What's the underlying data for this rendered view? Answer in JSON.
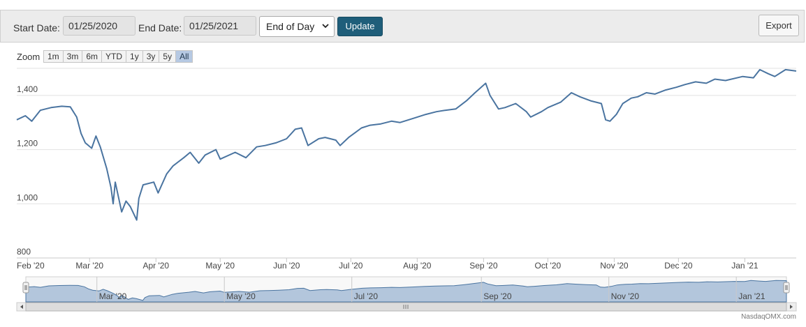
{
  "toolbar": {
    "start_label": "Start Date:",
    "start_value": "01/25/2020",
    "end_label": "End Date:",
    "end_value": "01/25/2021",
    "interval_value": "End of Day",
    "update_label": "Update",
    "export_label": "Export"
  },
  "zoom": {
    "label": "Zoom",
    "options": [
      "1m",
      "3m",
      "6m",
      "YTD",
      "1y",
      "3y",
      "5y",
      "All"
    ],
    "active": "All"
  },
  "credit": "NasdaqOMX.com",
  "colors": {
    "line": "#4a74a0",
    "navigator_fill": "#b3c6dc",
    "grid": "#e2e2e2",
    "active_zoom": "#b6c9e3",
    "update_button": "#1f5e7a"
  },
  "chart_data": {
    "type": "line",
    "title": "",
    "xlabel": "",
    "ylabel": "",
    "x_range": [
      "2020-01-27",
      "2021-01-25"
    ],
    "ylim": [
      800,
      1500
    ],
    "y_ticks": [
      800,
      1000,
      1200,
      1400
    ],
    "y_tick_labels": [
      "800",
      "1,000",
      "1,200",
      "1,400"
    ],
    "x_ticks": [
      {
        "date": "2020-02-01",
        "label": "Feb '20"
      },
      {
        "date": "2020-03-01",
        "label": "Mar '20"
      },
      {
        "date": "2020-04-01",
        "label": "Apr '20"
      },
      {
        "date": "2020-05-01",
        "label": "May '20"
      },
      {
        "date": "2020-06-01",
        "label": "Jun '20"
      },
      {
        "date": "2020-07-01",
        "label": "Jul '20"
      },
      {
        "date": "2020-08-01",
        "label": "Aug '20"
      },
      {
        "date": "2020-09-01",
        "label": "Sep '20"
      },
      {
        "date": "2020-10-01",
        "label": "Oct '20"
      },
      {
        "date": "2020-11-01",
        "label": "Nov '20"
      },
      {
        "date": "2020-12-01",
        "label": "Dec '20"
      },
      {
        "date": "2021-01-01",
        "label": "Jan '21"
      }
    ],
    "navigator_ticks": [
      {
        "date": "2020-03-01",
        "label": "Mar '20"
      },
      {
        "date": "2020-05-01",
        "label": "May '20"
      },
      {
        "date": "2020-07-01",
        "label": "Jul '20"
      },
      {
        "date": "2020-09-01",
        "label": "Sep '20"
      },
      {
        "date": "2020-11-01",
        "label": "Nov '20"
      },
      {
        "date": "2021-01-01",
        "label": "Jan '21"
      }
    ],
    "grid": true,
    "legend": "none",
    "series": [
      {
        "values": [
          [
            "2020-01-27",
            1310
          ],
          [
            "2020-01-31",
            1325
          ],
          [
            "2020-02-03",
            1305
          ],
          [
            "2020-02-07",
            1345
          ],
          [
            "2020-02-12",
            1355
          ],
          [
            "2020-02-17",
            1360
          ],
          [
            "2020-02-21",
            1358
          ],
          [
            "2020-02-24",
            1320
          ],
          [
            "2020-02-26",
            1260
          ],
          [
            "2020-02-28",
            1225
          ],
          [
            "2020-03-02",
            1205
          ],
          [
            "2020-03-04",
            1250
          ],
          [
            "2020-03-06",
            1210
          ],
          [
            "2020-03-09",
            1130
          ],
          [
            "2020-03-11",
            1060
          ],
          [
            "2020-03-12",
            1000
          ],
          [
            "2020-03-13",
            1080
          ],
          [
            "2020-03-16",
            970
          ],
          [
            "2020-03-18",
            1010
          ],
          [
            "2020-03-20",
            990
          ],
          [
            "2020-03-23",
            940
          ],
          [
            "2020-03-24",
            1020
          ],
          [
            "2020-03-26",
            1070
          ],
          [
            "2020-03-31",
            1080
          ],
          [
            "2020-04-02",
            1040
          ],
          [
            "2020-04-06",
            1110
          ],
          [
            "2020-04-09",
            1140
          ],
          [
            "2020-04-14",
            1170
          ],
          [
            "2020-04-17",
            1190
          ],
          [
            "2020-04-21",
            1150
          ],
          [
            "2020-04-24",
            1180
          ],
          [
            "2020-04-29",
            1200
          ],
          [
            "2020-05-01",
            1165
          ],
          [
            "2020-05-08",
            1190
          ],
          [
            "2020-05-13",
            1170
          ],
          [
            "2020-05-18",
            1210
          ],
          [
            "2020-05-22",
            1215
          ],
          [
            "2020-05-27",
            1225
          ],
          [
            "2020-06-01",
            1240
          ],
          [
            "2020-06-05",
            1275
          ],
          [
            "2020-06-08",
            1280
          ],
          [
            "2020-06-11",
            1215
          ],
          [
            "2020-06-16",
            1240
          ],
          [
            "2020-06-19",
            1245
          ],
          [
            "2020-06-24",
            1235
          ],
          [
            "2020-06-26",
            1215
          ],
          [
            "2020-06-30",
            1245
          ],
          [
            "2020-07-06",
            1280
          ],
          [
            "2020-07-10",
            1290
          ],
          [
            "2020-07-15",
            1295
          ],
          [
            "2020-07-20",
            1305
          ],
          [
            "2020-07-24",
            1300
          ],
          [
            "2020-07-30",
            1315
          ],
          [
            "2020-08-05",
            1330
          ],
          [
            "2020-08-10",
            1340
          ],
          [
            "2020-08-14",
            1345
          ],
          [
            "2020-08-19",
            1350
          ],
          [
            "2020-08-24",
            1380
          ],
          [
            "2020-08-28",
            1410
          ],
          [
            "2020-09-02",
            1445
          ],
          [
            "2020-09-04",
            1400
          ],
          [
            "2020-09-08",
            1350
          ],
          [
            "2020-09-11",
            1355
          ],
          [
            "2020-09-16",
            1370
          ],
          [
            "2020-09-21",
            1340
          ],
          [
            "2020-09-23",
            1320
          ],
          [
            "2020-09-28",
            1340
          ],
          [
            "2020-10-01",
            1355
          ],
          [
            "2020-10-07",
            1375
          ],
          [
            "2020-10-12",
            1410
          ],
          [
            "2020-10-16",
            1395
          ],
          [
            "2020-10-21",
            1380
          ],
          [
            "2020-10-26",
            1370
          ],
          [
            "2020-10-28",
            1310
          ],
          [
            "2020-10-30",
            1305
          ],
          [
            "2020-11-02",
            1330
          ],
          [
            "2020-11-05",
            1370
          ],
          [
            "2020-11-09",
            1390
          ],
          [
            "2020-11-12",
            1395
          ],
          [
            "2020-11-16",
            1410
          ],
          [
            "2020-11-20",
            1405
          ],
          [
            "2020-11-25",
            1420
          ],
          [
            "2020-11-30",
            1430
          ],
          [
            "2020-12-04",
            1440
          ],
          [
            "2020-12-09",
            1450
          ],
          [
            "2020-12-14",
            1445
          ],
          [
            "2020-12-18",
            1460
          ],
          [
            "2020-12-23",
            1455
          ],
          [
            "2020-12-31",
            1470
          ],
          [
            "2021-01-05",
            1465
          ],
          [
            "2021-01-08",
            1495
          ],
          [
            "2021-01-12",
            1480
          ],
          [
            "2021-01-15",
            1470
          ],
          [
            "2021-01-20",
            1495
          ],
          [
            "2021-01-25",
            1490
          ]
        ]
      }
    ]
  }
}
